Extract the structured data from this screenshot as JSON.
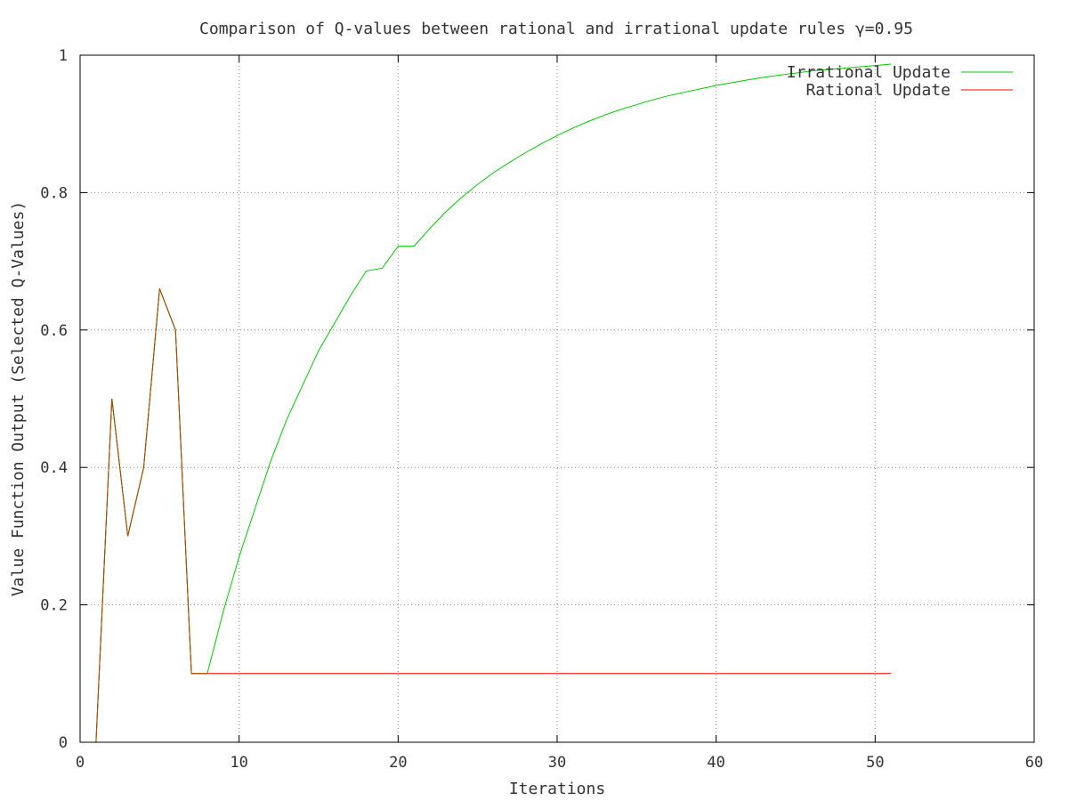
{
  "chart_data": {
    "type": "line",
    "title": "Comparison of Q-values between rational and irrational update rules γ=0.95",
    "xlabel": "Iterations",
    "ylabel": "Value Function Output (Selected Q-Values)",
    "xlim": [
      0,
      60
    ],
    "ylim": [
      0,
      1
    ],
    "xticks": [
      0,
      10,
      20,
      30,
      40,
      50,
      60
    ],
    "yticks": [
      0,
      0.2,
      0.4,
      0.6,
      0.8,
      1
    ],
    "xtick_labels": [
      "0",
      "10",
      "20",
      "30",
      "40",
      "50",
      "60"
    ],
    "ytick_labels": [
      "0",
      "0.2",
      "0.4",
      "0.6",
      "0.8",
      "1"
    ],
    "grid": true,
    "legend_position": "top-right",
    "series": [
      {
        "name": "Irrational Update",
        "color": "#00cc00",
        "x": [
          1,
          2,
          3,
          4,
          5,
          6,
          7,
          8,
          9,
          10,
          11,
          12,
          13,
          14,
          15,
          16,
          17,
          18,
          19,
          20,
          21,
          22,
          23,
          24,
          25,
          26,
          27,
          28,
          29,
          30,
          31,
          32,
          33,
          34,
          35,
          36,
          37,
          38,
          39,
          40,
          41,
          42,
          43,
          44,
          45,
          46,
          47,
          48,
          49,
          50,
          51
        ],
        "y": [
          0,
          0.5,
          0.3,
          0.4,
          0.66,
          0.6,
          0.1,
          0.1,
          0.19,
          0.27,
          0.34,
          0.41,
          0.47,
          0.52,
          0.57,
          0.61,
          0.65,
          0.686,
          0.69,
          0.722,
          0.722,
          0.748,
          0.772,
          0.793,
          0.812,
          0.829,
          0.844,
          0.858,
          0.871,
          0.883,
          0.894,
          0.904,
          0.913,
          0.921,
          0.928,
          0.935,
          0.941,
          0.946,
          0.951,
          0.956,
          0.96,
          0.964,
          0.968,
          0.971,
          0.974,
          0.977,
          0.979,
          0.981,
          0.983,
          0.985,
          0.987
        ]
      },
      {
        "name": "Rational Update",
        "color": "#ff0000",
        "x": [
          1,
          2,
          3,
          4,
          5,
          6,
          7,
          8,
          51
        ],
        "y": [
          0,
          0.5,
          0.3,
          0.4,
          0.66,
          0.6,
          0.1,
          0.1,
          0.1
        ]
      }
    ],
    "overlap_color": "#a05000"
  }
}
